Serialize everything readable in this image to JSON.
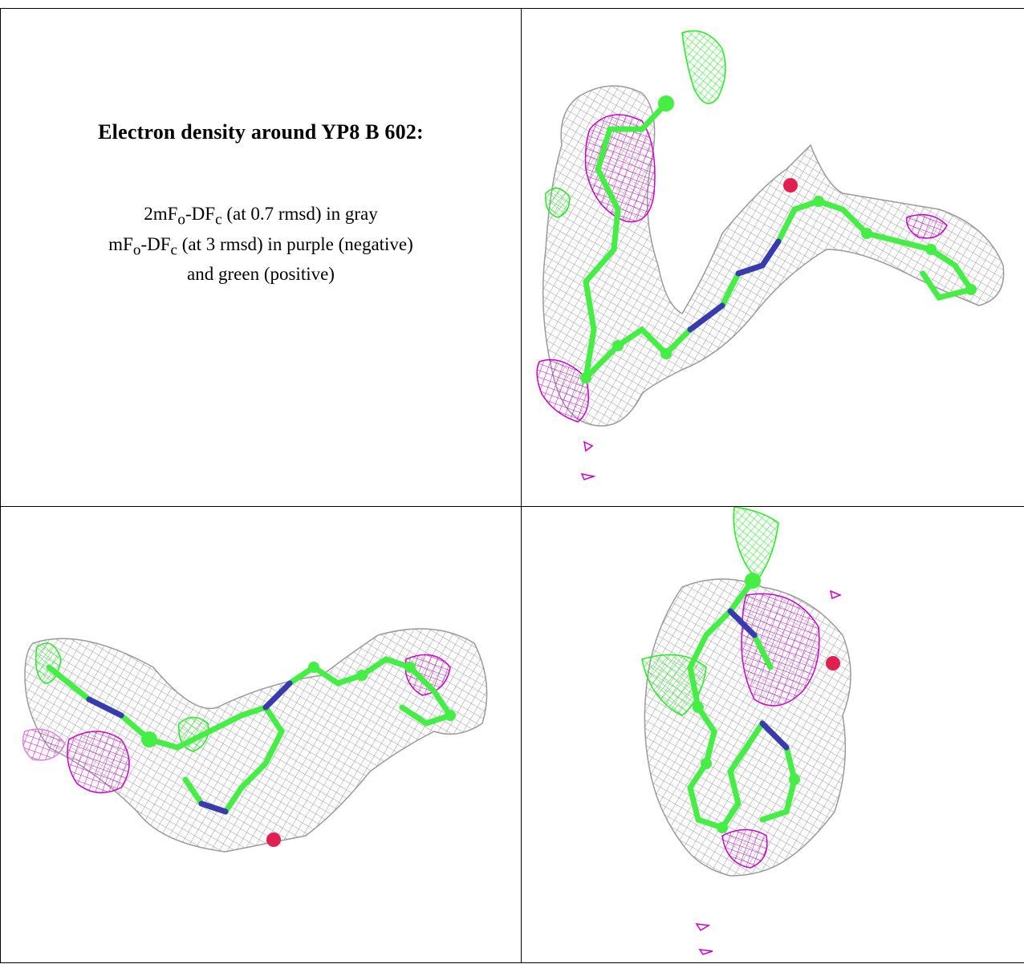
{
  "caption": {
    "title": "Electron density around YP8 B 602:",
    "line1_pre": "2mF",
    "line1_sub1": "o",
    "line1_mid": "-DF",
    "line1_sub2": "c",
    "line1_post": " (at 0.7 rmsd) in gray",
    "line2_pre": "mF",
    "line2_sub1": "o",
    "line2_mid": "-DF",
    "line2_sub2": "c",
    "line2_post": " (at 3 rmsd) in purple (negative)",
    "line3": "and green (positive)"
  },
  "colors": {
    "mesh_gray": "#9a9a9a",
    "negative_purple": "#cc00cc",
    "positive_green": "#22ee22",
    "carbon_green": "#44ee44",
    "nitrogen_blue": "#3a3ab0",
    "oxygen_red": "#e02050"
  }
}
